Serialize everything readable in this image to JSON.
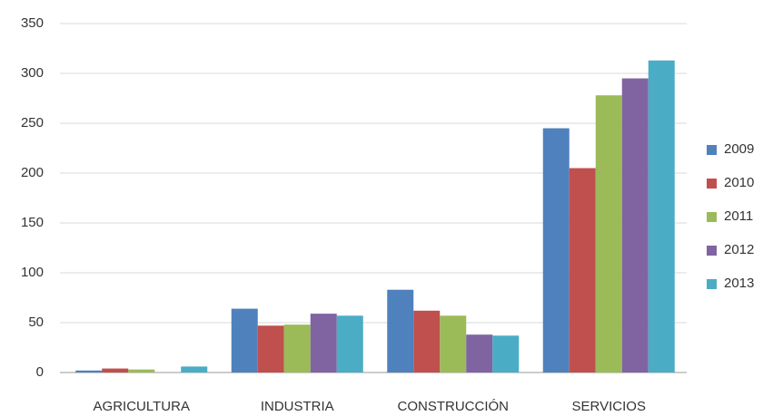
{
  "chart_data": {
    "type": "bar",
    "categories": [
      "AGRICULTURA",
      "INDUSTRIA",
      "CONSTRUCCIÓN",
      "SERVICIOS"
    ],
    "series": [
      {
        "name": "2009",
        "color": "#4f81bd",
        "values": [
          2,
          64,
          83,
          245
        ]
      },
      {
        "name": "2010",
        "color": "#c0504d",
        "values": [
          4,
          47,
          62,
          205
        ]
      },
      {
        "name": "2011",
        "color": "#9bbb59",
        "values": [
          3,
          48,
          57,
          278
        ]
      },
      {
        "name": "2012",
        "color": "#8064a2",
        "values": [
          0,
          59,
          38,
          295
        ]
      },
      {
        "name": "2013",
        "color": "#4bacc6",
        "values": [
          6,
          57,
          37,
          313
        ]
      }
    ],
    "ylim": [
      0,
      350
    ],
    "yticks": [
      0,
      50,
      100,
      150,
      200,
      250,
      300,
      350
    ],
    "grid": true,
    "legend": "right"
  }
}
